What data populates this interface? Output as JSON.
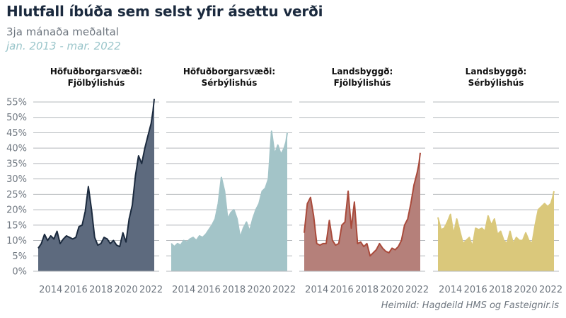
{
  "title": "Hlutfall íbúða sem selst yfir ásettu verði",
  "subtitle": "3ja mánaða meðaltal",
  "date_range": "jan. 2013 - mar. 2022",
  "source": "Heimild: Hagdeild HMS og Fasteignir.is",
  "colors": {
    "axis_text": "#6f7780",
    "grid": "#b4b8bc",
    "title": "#1b2a3e"
  },
  "chart_data": {
    "type": "area",
    "ylim": [
      0,
      55
    ],
    "yticks": [
      0,
      5,
      10,
      15,
      20,
      25,
      30,
      35,
      40,
      45,
      50,
      55
    ],
    "ytick_labels": [
      "0%",
      "5%",
      "10%",
      "15%",
      "20%",
      "25%",
      "30%",
      "35%",
      "40%",
      "45%",
      "50%",
      "55%"
    ],
    "xlim": [
      2013.0,
      2022.25
    ],
    "xticks": [
      2014,
      2016,
      2018,
      2020,
      2022
    ],
    "xtick_labels": [
      "2014",
      "2016",
      "2018",
      "2020",
      "2022"
    ],
    "panels": [
      {
        "title_line1": "Höfuðborgarsvæði:",
        "title_line2": "Fjölbýlishús",
        "fill": "#5d6a7e",
        "line": "#1b2a3e",
        "x": [
          2013.0,
          2013.25,
          2013.5,
          2013.75,
          2014.0,
          2014.25,
          2014.5,
          2014.75,
          2015.0,
          2015.25,
          2015.5,
          2015.75,
          2016.0,
          2016.25,
          2016.5,
          2016.75,
          2017.0,
          2017.25,
          2017.5,
          2017.75,
          2018.0,
          2018.25,
          2018.5,
          2018.75,
          2019.0,
          2019.25,
          2019.5,
          2019.75,
          2020.0,
          2020.25,
          2020.5,
          2020.75,
          2021.0,
          2021.25,
          2021.5,
          2021.75,
          2022.0,
          2022.15,
          2022.25
        ],
        "values": [
          7.5,
          9,
          12,
          10,
          11.5,
          10.5,
          13,
          9,
          10.5,
          11.5,
          11,
          10.5,
          11,
          14.5,
          15,
          19.5,
          27.5,
          20,
          11,
          8.5,
          9,
          11,
          10.5,
          9,
          10,
          8.5,
          8,
          12.5,
          9.5,
          17,
          21.5,
          31,
          37.5,
          35,
          40,
          44,
          48,
          52,
          56
        ]
      },
      {
        "title_line1": "Höfuðborgarsvæði:",
        "title_line2": "Sérbýlishús",
        "fill": "#a3c4c8",
        "line": "#a3c4c8",
        "x": [
          2013.0,
          2013.25,
          2013.5,
          2013.75,
          2014.0,
          2014.25,
          2014.5,
          2014.75,
          2015.0,
          2015.25,
          2015.5,
          2015.75,
          2016.0,
          2016.25,
          2016.5,
          2016.75,
          2017.0,
          2017.25,
          2017.5,
          2017.75,
          2018.0,
          2018.25,
          2018.5,
          2018.75,
          2019.0,
          2019.25,
          2019.5,
          2019.75,
          2020.0,
          2020.25,
          2020.5,
          2020.75,
          2021.0,
          2021.25,
          2021.5,
          2021.75,
          2022.0,
          2022.15,
          2022.25
        ],
        "values": [
          9,
          8,
          9,
          8.5,
          10,
          9.5,
          10.5,
          11,
          10,
          11.5,
          11,
          12,
          13.5,
          15,
          17,
          22,
          30.5,
          26,
          17,
          19,
          20,
          17,
          11,
          14,
          16,
          13,
          17,
          20,
          22,
          26,
          27,
          30,
          45.5,
          38,
          41,
          38,
          40,
          42,
          45
        ]
      },
      {
        "title_line1": "Landsbyggð:",
        "title_line2": "Fjölbýlishús",
        "fill": "#b5807a",
        "line": "#a94a3b",
        "x": [
          2013.0,
          2013.25,
          2013.5,
          2013.75,
          2014.0,
          2014.25,
          2014.5,
          2014.75,
          2015.0,
          2015.25,
          2015.5,
          2015.75,
          2016.0,
          2016.25,
          2016.5,
          2016.75,
          2017.0,
          2017.25,
          2017.5,
          2017.75,
          2018.0,
          2018.25,
          2018.5,
          2018.75,
          2019.0,
          2019.25,
          2019.5,
          2019.75,
          2020.0,
          2020.25,
          2020.5,
          2020.75,
          2021.0,
          2021.25,
          2021.5,
          2021.75,
          2022.0,
          2022.15,
          2022.25
        ],
        "values": [
          12.5,
          22,
          24,
          18,
          9,
          8.5,
          9,
          9,
          16.5,
          10,
          8.5,
          9,
          15,
          16,
          26,
          14,
          22.5,
          9,
          9.5,
          8,
          9,
          5,
          6,
          7,
          9,
          7.5,
          6.5,
          6,
          7.5,
          7,
          8,
          10,
          15,
          17,
          22,
          28,
          32,
          35,
          38.5
        ]
      },
      {
        "title_line1": "Landsbyggð:",
        "title_line2": "Sérbýlishús",
        "fill": "#dac87b",
        "line": "#dac87b",
        "x": [
          2013.0,
          2013.25,
          2013.5,
          2013.75,
          2014.0,
          2014.25,
          2014.5,
          2014.75,
          2015.0,
          2015.25,
          2015.5,
          2015.75,
          2016.0,
          2016.25,
          2016.5,
          2016.75,
          2017.0,
          2017.25,
          2017.5,
          2017.75,
          2018.0,
          2018.25,
          2018.5,
          2018.75,
          2019.0,
          2019.25,
          2019.5,
          2019.75,
          2020.0,
          2020.25,
          2020.5,
          2020.75,
          2021.0,
          2021.25,
          2021.5,
          2021.75,
          2022.0,
          2022.15,
          2022.25
        ],
        "values": [
          17.5,
          13.5,
          14,
          16,
          18.5,
          12,
          17,
          13,
          9,
          10,
          11,
          8,
          14,
          13.5,
          14,
          13,
          18,
          15,
          17,
          12,
          13,
          10,
          9,
          13,
          9,
          11,
          10,
          10,
          12.5,
          10,
          9,
          15,
          20,
          21,
          22,
          21,
          22,
          24,
          26
        ]
      }
    ]
  }
}
